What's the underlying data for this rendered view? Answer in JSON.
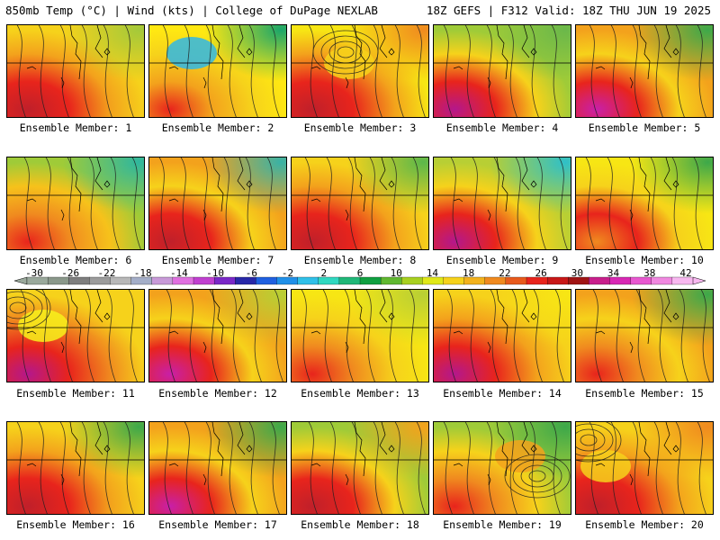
{
  "header": {
    "left": "850mb Temp (°C) | Wind (kts) | College of DuPage NEXLAB",
    "right": "18Z GEFS | F312 Valid: 18Z THU JUN 19 2025"
  },
  "panels": [
    {
      "label": "Ensemble Member: 1",
      "style": {
        "base": "#f3a21c",
        "sw": "#e8241c",
        "sw2": "#c0202a",
        "nw": "#f6d21b",
        "ne": "#a4c93a",
        "high": null
      }
    },
    {
      "label": "Ensemble Member: 2",
      "style": {
        "base": "#f6d21b",
        "sw": "#f3a21c",
        "sw2": "#e8241c",
        "nw": "#ffe812",
        "ne": "#1aa66a",
        "high": "#2fb7e6"
      }
    },
    {
      "label": "Ensemble Member: 3",
      "style": {
        "base": "#f3a21c",
        "sw": "#e8241c",
        "sw2": "#c0202a",
        "nw": "#f7e614",
        "ne": "#f08a1f",
        "high": "#f6d21b"
      }
    },
    {
      "label": "Ensemble Member: 4",
      "style": {
        "base": "#f6d21b",
        "sw": "#e8241c",
        "sw2": "#b4178c",
        "nw": "#9fcb38",
        "ne": "#6bb84a",
        "high": null
      }
    },
    {
      "label": "Ensemble Member: 5",
      "style": {
        "base": "#f6d21b",
        "sw": "#e8241c",
        "sw2": "#c81fa8",
        "nw": "#f3a21c",
        "ne": "#3da84a",
        "high": null
      }
    },
    {
      "label": "Ensemble Member: 6",
      "style": {
        "base": "#f6c21b",
        "sw": "#f08a1f",
        "sw2": "#e8241c",
        "nw": "#9fcb38",
        "ne": "#2fb79e",
        "high": null
      }
    },
    {
      "label": "Ensemble Member: 7",
      "style": {
        "base": "#f6d21b",
        "sw": "#e8241c",
        "sw2": "#c0202a",
        "nw": "#f3a21c",
        "ne": "#38b2a6",
        "high": null
      }
    },
    {
      "label": "Ensemble Member: 8",
      "style": {
        "base": "#f3a21c",
        "sw": "#e8241c",
        "sw2": "#c0202a",
        "nw": "#f6d21b",
        "ne": "#5cb84a",
        "high": null
      }
    },
    {
      "label": "Ensemble Member: 9",
      "style": {
        "base": "#f6d21b",
        "sw": "#e8241c",
        "sw2": "#b4178c",
        "nw": "#b8cf34",
        "ne": "#2fc0c8",
        "high": null
      }
    },
    {
      "label": "Ensemble Member: 10",
      "style": {
        "base": "#f6d21b",
        "sw": "#e8241c",
        "sw2": "#f08a1f",
        "nw": "#f7e614",
        "ne": "#3da84a",
        "high": null
      }
    },
    {
      "label": "Ensemble Member: 11",
      "style": {
        "base": "#f08a1f",
        "sw": "#e8241c",
        "sw2": "#b4178c",
        "nw": "#f6d21b",
        "ne": "#f6d21b",
        "high": "#f7f21b"
      }
    },
    {
      "label": "Ensemble Member: 12",
      "style": {
        "base": "#f6d21b",
        "sw": "#e8241c",
        "sw2": "#c81fa8",
        "nw": "#f3a21c",
        "ne": "#b8cf34",
        "high": null
      }
    },
    {
      "label": "Ensemble Member: 13",
      "style": {
        "base": "#f6d21b",
        "sw": "#f08a1f",
        "sw2": "#e8241c",
        "nw": "#f7e614",
        "ne": "#b8cf34",
        "high": null
      }
    },
    {
      "label": "Ensemble Member: 14",
      "style": {
        "base": "#f3a21c",
        "sw": "#e8241c",
        "sw2": "#b4178c",
        "nw": "#f6d21b",
        "ne": "#f7e614",
        "high": null
      }
    },
    {
      "label": "Ensemble Member: 15",
      "style": {
        "base": "#f6d21b",
        "sw": "#f08a1f",
        "sw2": "#e8241c",
        "nw": "#f3a21c",
        "ne": "#3da84a",
        "high": null
      }
    },
    {
      "label": "Ensemble Member: 16",
      "style": {
        "base": "#f3a21c",
        "sw": "#e8241c",
        "sw2": "#c0202a",
        "nw": "#f6d21b",
        "ne": "#3da84a",
        "high": null
      }
    },
    {
      "label": "Ensemble Member: 17",
      "style": {
        "base": "#f6d21b",
        "sw": "#e8241c",
        "sw2": "#c81fa8",
        "nw": "#f3a21c",
        "ne": "#3da84a",
        "high": null
      }
    },
    {
      "label": "Ensemble Member: 18",
      "style": {
        "base": "#f6d21b",
        "sw": "#e8241c",
        "sw2": "#c0202a",
        "nw": "#9fcb38",
        "ne": "#f3a21c",
        "high": null
      }
    },
    {
      "label": "Ensemble Member: 19",
      "style": {
        "base": "#f6d21b",
        "sw": "#f08a1f",
        "sw2": "#e8241c",
        "nw": "#9fcb38",
        "ne": "#3da84a",
        "high": "#f3a21c"
      }
    },
    {
      "label": "Ensemble Member: 20",
      "style": {
        "base": "#f3a21c",
        "sw": "#e8241c",
        "sw2": "#c0202a",
        "nw": "#f6d21b",
        "ne": "#f08a1f",
        "high": "#f6d21b"
      }
    }
  ],
  "colorbar": {
    "labels": [
      "-30",
      "-26",
      "-22",
      "-18",
      "-14",
      "-10",
      "-6",
      "-2",
      "2",
      "6",
      "10",
      "14",
      "18",
      "22",
      "26",
      "30",
      "34",
      "38",
      "42"
    ],
    "colors": [
      "#9aa99c",
      "#8a988a",
      "#7e7e7e",
      "#9c9c9c",
      "#b8b8b8",
      "#a4aec8",
      "#c89ad8",
      "#e070e0",
      "#c040d0",
      "#7a28c8",
      "#2828a8",
      "#2060e0",
      "#2090e8",
      "#30c0e8",
      "#30d8c0",
      "#20b878",
      "#10a040",
      "#60b830",
      "#a8d020",
      "#e0e818",
      "#f6d21b",
      "#f3b21c",
      "#f08a1f",
      "#e85a1c",
      "#e8241c",
      "#c81818",
      "#a01414",
      "#c81f8c",
      "#d828b4",
      "#e858d0",
      "#f088e0",
      "#f8b8f0"
    ]
  }
}
